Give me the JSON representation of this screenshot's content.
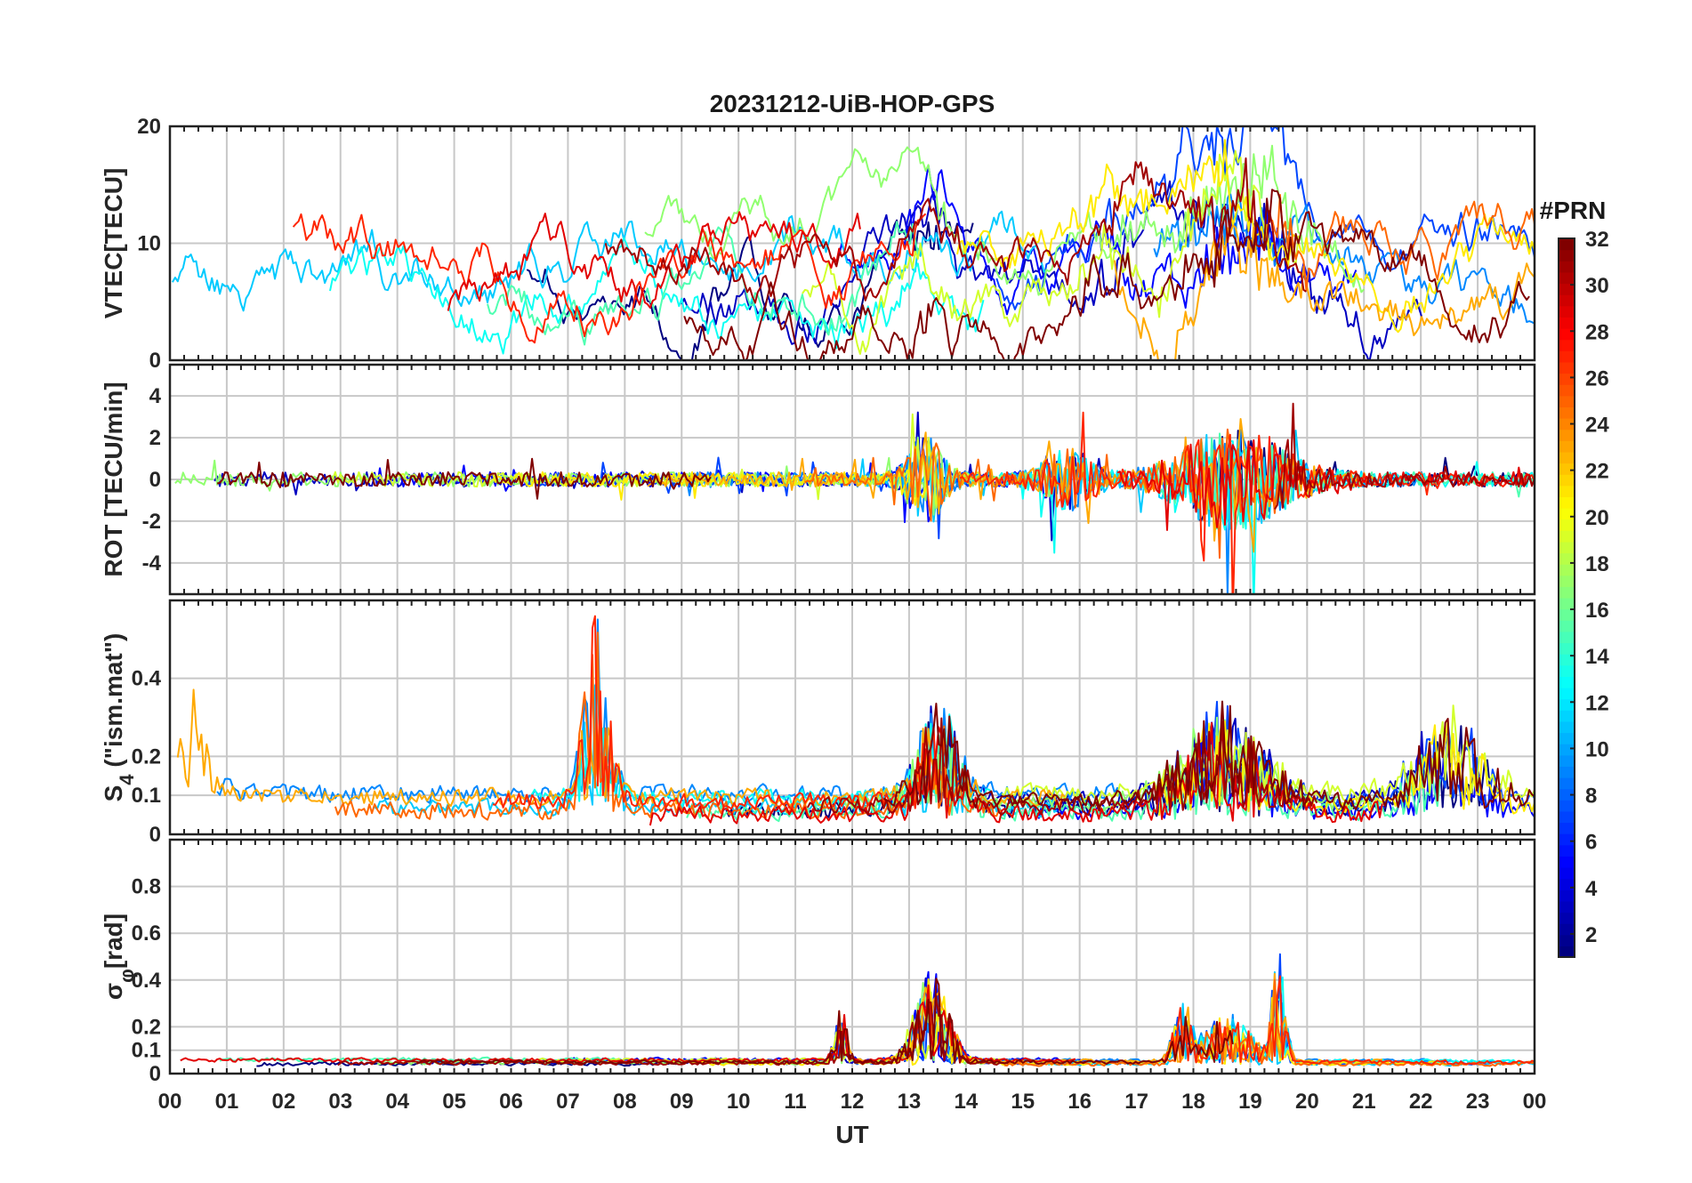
{
  "chart_data": {
    "type": "line",
    "title": "20231212-UiB-HOP-GPS",
    "xlabel": "UT",
    "x_tick_labels": [
      "00",
      "01",
      "02",
      "03",
      "04",
      "05",
      "06",
      "07",
      "08",
      "09",
      "10",
      "11",
      "12",
      "13",
      "14",
      "15",
      "16",
      "17",
      "18",
      "19",
      "20",
      "21",
      "22",
      "23",
      "00"
    ],
    "x_range_hours": [
      0,
      24
    ],
    "colorbar": {
      "title": "#PRN",
      "range": [
        1,
        32
      ],
      "tick_labels": [
        "2",
        "4",
        "6",
        "8",
        "10",
        "12",
        "14",
        "16",
        "18",
        "20",
        "22",
        "24",
        "26",
        "28",
        "30",
        "32"
      ],
      "colormap": "jet"
    },
    "panels": [
      {
        "name": "vtec",
        "ylabel": "VTEC[TECU]",
        "ylim": [
          0,
          20
        ],
        "ytick_values": [
          0,
          10,
          20
        ],
        "ytick_labels": [
          "0",
          "10",
          "20"
        ],
        "base": 7,
        "noise": 1.2,
        "smooth": 0.95,
        "spread": 2.5,
        "events": [
          {
            "center": 13.3,
            "width": 0.5,
            "amp": 3
          },
          {
            "center": 16.5,
            "width": 0.7,
            "amp": 3
          },
          {
            "center": 18.8,
            "width": 1.2,
            "amp": 6
          }
        ]
      },
      {
        "name": "rot",
        "ylabel": "ROT [TECU/min]",
        "ylim": [
          -5.5,
          5.5
        ],
        "ytick_values": [
          -4,
          -2,
          0,
          2,
          4
        ],
        "ytick_labels": [
          "-4",
          "-2",
          "0",
          "2",
          "4"
        ],
        "base": 0,
        "noise": 0.35,
        "smooth": 0,
        "spread": 0,
        "events": [
          {
            "center": 13.3,
            "width": 0.35,
            "amp": 2.0
          },
          {
            "center": 15.8,
            "width": 0.5,
            "amp": 1.2
          },
          {
            "center": 18.7,
            "width": 1.1,
            "amp": 2.2
          }
        ]
      },
      {
        "name": "s4",
        "ylabel": "S4 (\"ism.mat\")",
        "ylabel_main": "S",
        "ylabel_sub": "4",
        "ylabel_rest": " (\"ism.mat\")",
        "ylim": [
          0,
          0.6
        ],
        "ytick_values": [
          0,
          0.1,
          0.2,
          0.4
        ],
        "ytick_labels": [
          "0",
          "0.1",
          "0.2",
          "0.4"
        ],
        "base": 0.05,
        "noise": 0.04,
        "smooth": 0.3,
        "spread": 0.03,
        "events": [
          {
            "center": 0.4,
            "width": 0.4,
            "amp": 0.2
          },
          {
            "center": 7.5,
            "width": 0.3,
            "amp": 0.25
          },
          {
            "center": 13.5,
            "width": 0.5,
            "amp": 0.12
          },
          {
            "center": 18.5,
            "width": 1.0,
            "amp": 0.12
          },
          {
            "center": 22.5,
            "width": 0.8,
            "amp": 0.12
          }
        ]
      },
      {
        "name": "sigma_phi",
        "ylabel": "σφ[rad]",
        "ylabel_main": "σ",
        "ylabel_sub": "φ",
        "ylabel_rest": "[rad]",
        "ylim": [
          0,
          1.0
        ],
        "ytick_values": [
          0,
          0.1,
          0.2,
          0.4,
          0.6,
          0.8
        ],
        "ytick_labels": [
          "0",
          "0.1",
          "0.2",
          "0.4",
          "0.6",
          "0.8"
        ],
        "base": 0.04,
        "noise": 0.015,
        "smooth": 0.3,
        "spread": 0.01,
        "events": [
          {
            "center": 11.8,
            "width": 0.15,
            "amp": 0.12
          },
          {
            "center": 13.4,
            "width": 0.4,
            "amp": 0.2
          },
          {
            "center": 17.8,
            "width": 0.2,
            "amp": 0.12
          },
          {
            "center": 18.6,
            "width": 0.6,
            "amp": 0.1
          },
          {
            "center": 19.5,
            "width": 0.15,
            "amp": 0.25
          }
        ]
      }
    ],
    "series_prns": [
      1,
      3,
      5,
      7,
      9,
      11,
      13,
      15,
      17,
      19,
      21,
      23,
      25,
      27,
      29,
      31,
      32
    ]
  }
}
